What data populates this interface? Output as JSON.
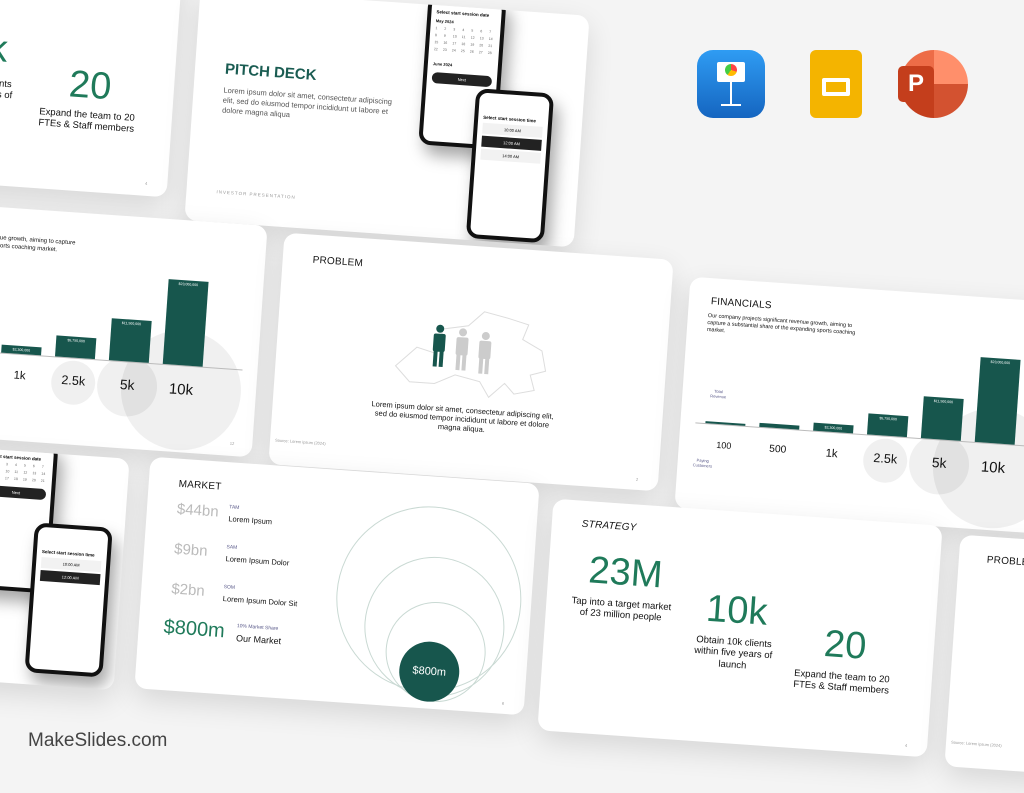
{
  "brand": "MakeSlides.com",
  "colors": {
    "accent_dark": "#17564d",
    "accent_green": "#1f7a5a",
    "keynote": "#1e88e5",
    "google_slides": "#f4b400",
    "powerpoint": "#d24726"
  },
  "apps": [
    {
      "icon": "keynote-icon"
    },
    {
      "icon": "google-slides-icon"
    },
    {
      "icon": "powerpoint-icon"
    }
  ],
  "strategy": {
    "title": "STRATEGY",
    "stats": [
      {
        "value": "23M",
        "caption": "Tap into a target market of 23 million people"
      },
      {
        "value": "10k",
        "caption": "Obtain 10k clients within five years of launch"
      },
      {
        "value": "20",
        "caption": "Expand the team to 20 FTEs & Staff members"
      }
    ],
    "page": "4"
  },
  "pitch": {
    "title": "PITCH DECK",
    "body": "Lorem ipsum dolor sit amet, consectetur adipiscing elit, sed do eiusmod tempor incididunt ut labore et dolore magna aliqua",
    "footer": "INVESTOR PRESENTATION",
    "phone1": {
      "title": "Select start session date",
      "month1": "May 2024",
      "month2": "June 2024",
      "button": "Next"
    },
    "phone2": {
      "title": "Select start session time",
      "options": [
        "10:00 AM",
        "12:00 AM",
        "14:00 AM"
      ]
    }
  },
  "problem": {
    "title": "PROBLEM",
    "body": "Lorem ipsum dolor sit amet, consectetur adipiscing elit, sed do eiusmod tempor incididunt ut labore et dolore magna aliqua.",
    "source": "Source: Lorem ipsum (2024)",
    "page": "2"
  },
  "financials": {
    "title": "FINANCIALS",
    "body": "Our company projects significant revenue growth, aiming to capture a substantial share of the expanding sports coaching market.",
    "revenue_label": "Total Revenue",
    "customers_label": "Paying Customers",
    "page": "12"
  },
  "chart_data": {
    "type": "bar",
    "categories": [
      "100",
      "500",
      "1k",
      "2.5k",
      "5k",
      "10k"
    ],
    "values": [
      230000,
      1150000,
      2300000,
      5750000,
      11500000,
      23000000
    ],
    "data_labels": [
      "$230,000",
      "$1,150,000",
      "$2,300,000",
      "$5,750,000",
      "$11,500,000",
      "$23,000,000"
    ],
    "xlabel": "Paying Customers",
    "ylabel": "Total Revenue"
  },
  "market": {
    "title": "MARKET",
    "rows": [
      {
        "value": "$44bn",
        "tag": "TAM",
        "label": "Lorem Ipsum"
      },
      {
        "value": "$9bn",
        "tag": "SAM",
        "label": "Lorem Ipsum Dolor"
      },
      {
        "value": "$2bn",
        "tag": "SOM",
        "label": "Lorem Ipsum Dolor Sit"
      },
      {
        "value": "$800m",
        "tag": "10% Market Share",
        "label": "Our Market"
      }
    ],
    "circle_value": "$800m",
    "page": "6"
  }
}
